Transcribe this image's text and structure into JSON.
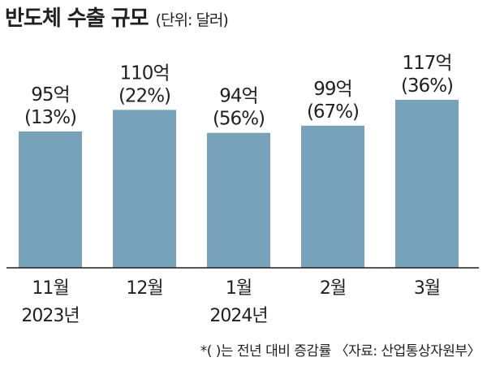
{
  "title": "반도체 수출 규모",
  "subtitle": "(단위: 달러)",
  "footnote": "*( )는 전년 대비 증감률 〈자료: 산업통상자원부〉",
  "colors": {
    "bar": "#77a2b9",
    "text": "#231f20",
    "axis": "#231f20"
  },
  "chart_data": {
    "type": "bar",
    "categories": [
      "11월",
      "12월",
      "1월",
      "2월",
      "3월"
    ],
    "year_labels": [
      "2023년",
      "",
      "2024년",
      "",
      ""
    ],
    "values": [
      95,
      110,
      94,
      99,
      117
    ],
    "value_labels": [
      "95억",
      "110억",
      "94억",
      "99억",
      "117억"
    ],
    "change_labels": [
      "(13%)",
      "(22%)",
      "(56%)",
      "(67%)",
      "(36%)"
    ],
    "yoy_change_percent": [
      13,
      22,
      56,
      67,
      36
    ],
    "unit": "억 달러",
    "title": "반도체 수출 규모",
    "xlabel": "",
    "ylabel": "",
    "grid": false,
    "legend": "none"
  }
}
